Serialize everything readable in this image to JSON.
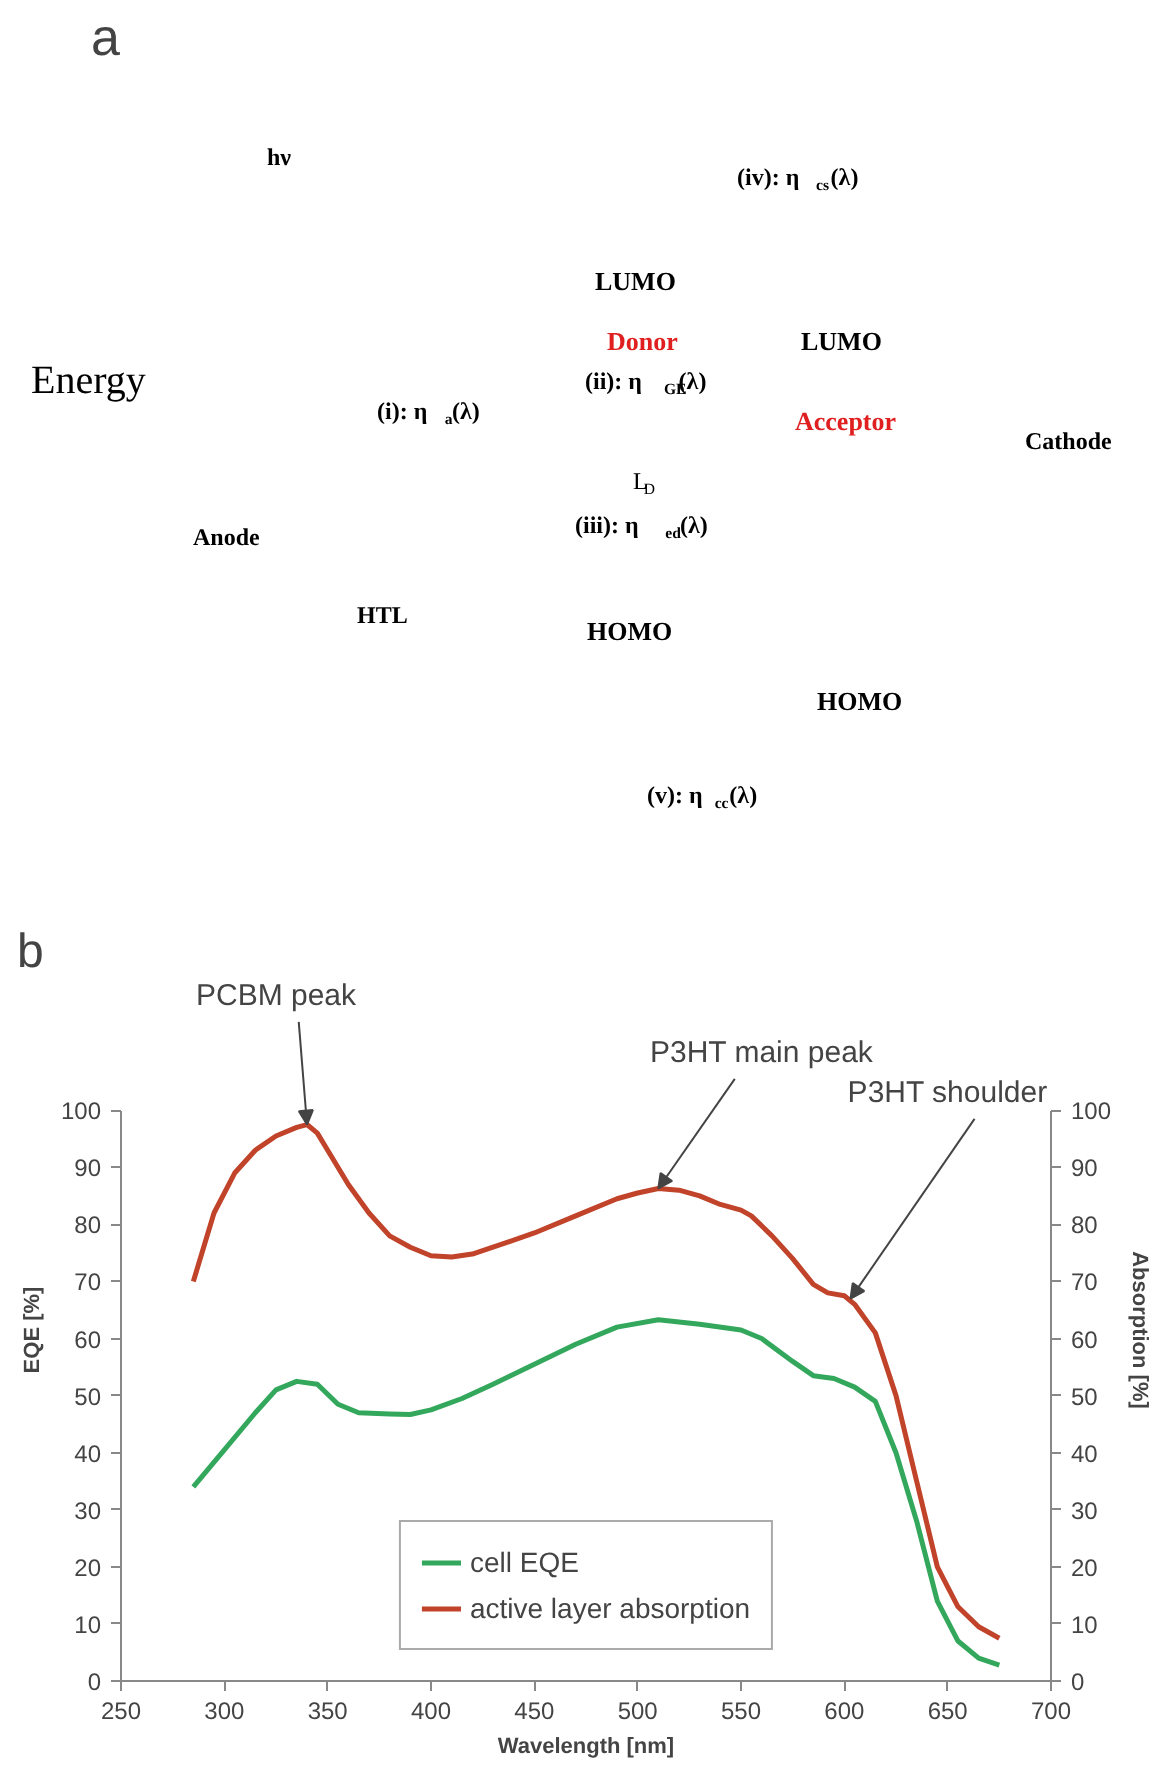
{
  "chart_data": [
    {
      "type": "other",
      "title": "a",
      "annotations": [
        "Energy",
        "hν",
        "(i): η$_{a}$(λ)",
        "(ii): η$_{GE}$(λ)",
        "(iii): η$_{ed}$(λ)",
        "(iv): η$_{cs}$(λ)",
        "(v): η$_{cc}$(λ)",
        "L$_{D}$",
        "LUMO",
        "Donor",
        "HOMO",
        "LUMO",
        "Acceptor",
        "HOMO",
        "Anode",
        "HTL",
        "Cathode"
      ]
    },
    {
      "type": "line",
      "title": "b",
      "xlabel": "Wavelength [nm]",
      "ylabel": "EQE [%]",
      "y2label": "Absorption [%]",
      "xlim": [
        250,
        700
      ],
      "xticks": [
        250,
        300,
        350,
        400,
        450,
        500,
        550,
        600,
        650,
        700
      ],
      "ylim": [
        0,
        100
      ],
      "yticks": [
        0,
        10,
        20,
        30,
        40,
        50,
        60,
        70,
        80,
        90,
        100
      ],
      "y2lim": [
        0,
        100
      ],
      "y2ticks": [
        0,
        10,
        20,
        30,
        40,
        50,
        60,
        70,
        80,
        90,
        100
      ],
      "grid": false,
      "legend": "bottom",
      "series": [
        {
          "name": "cell EQE",
          "color": "#33a85c",
          "x": [
            285,
            300,
            315,
            325,
            335,
            345,
            355,
            365,
            380,
            390,
            400,
            415,
            430,
            450,
            470,
            490,
            510,
            530,
            550,
            560,
            575,
            585,
            595,
            605,
            615,
            625,
            635,
            645,
            655,
            665,
            675
          ],
          "values": [
            34,
            40.5,
            47,
            51,
            52.5,
            52,
            48.5,
            47,
            46.8,
            46.7,
            47.5,
            49.5,
            52,
            55.5,
            59,
            62,
            63.3,
            62.5,
            61.5,
            60,
            56,
            53.5,
            53,
            51.5,
            49,
            40,
            28,
            14,
            7,
            4,
            2.8
          ]
        },
        {
          "name": "active layer absorption",
          "color": "#c0432a",
          "x": [
            285,
            295,
            305,
            315,
            325,
            335,
            340,
            345,
            350,
            360,
            370,
            380,
            390,
            400,
            410,
            420,
            430,
            450,
            470,
            490,
            500,
            510,
            520,
            530,
            540,
            550,
            555,
            565,
            575,
            585,
            592,
            600,
            605,
            615,
            625,
            635,
            645,
            655,
            665,
            675
          ],
          "values": [
            70,
            82,
            89,
            93,
            95.5,
            97,
            97.5,
            96,
            93,
            87,
            82,
            78,
            76,
            74.5,
            74.3,
            74.8,
            76,
            78.5,
            81.5,
            84.5,
            85.5,
            86.3,
            86,
            85,
            83.5,
            82.5,
            81.5,
            78,
            74,
            69.5,
            68,
            67.5,
            66,
            61,
            50,
            35,
            20,
            13,
            9.5,
            7.5
          ]
        }
      ],
      "annotations": [
        {
          "text": "PCBM peak",
          "x": 340,
          "y": 97.5
        },
        {
          "text": "P3HT main peak",
          "x": 510,
          "y": 86.3
        },
        {
          "text": "P3HT shoulder",
          "x": 603,
          "y": 67
        }
      ]
    }
  ]
}
